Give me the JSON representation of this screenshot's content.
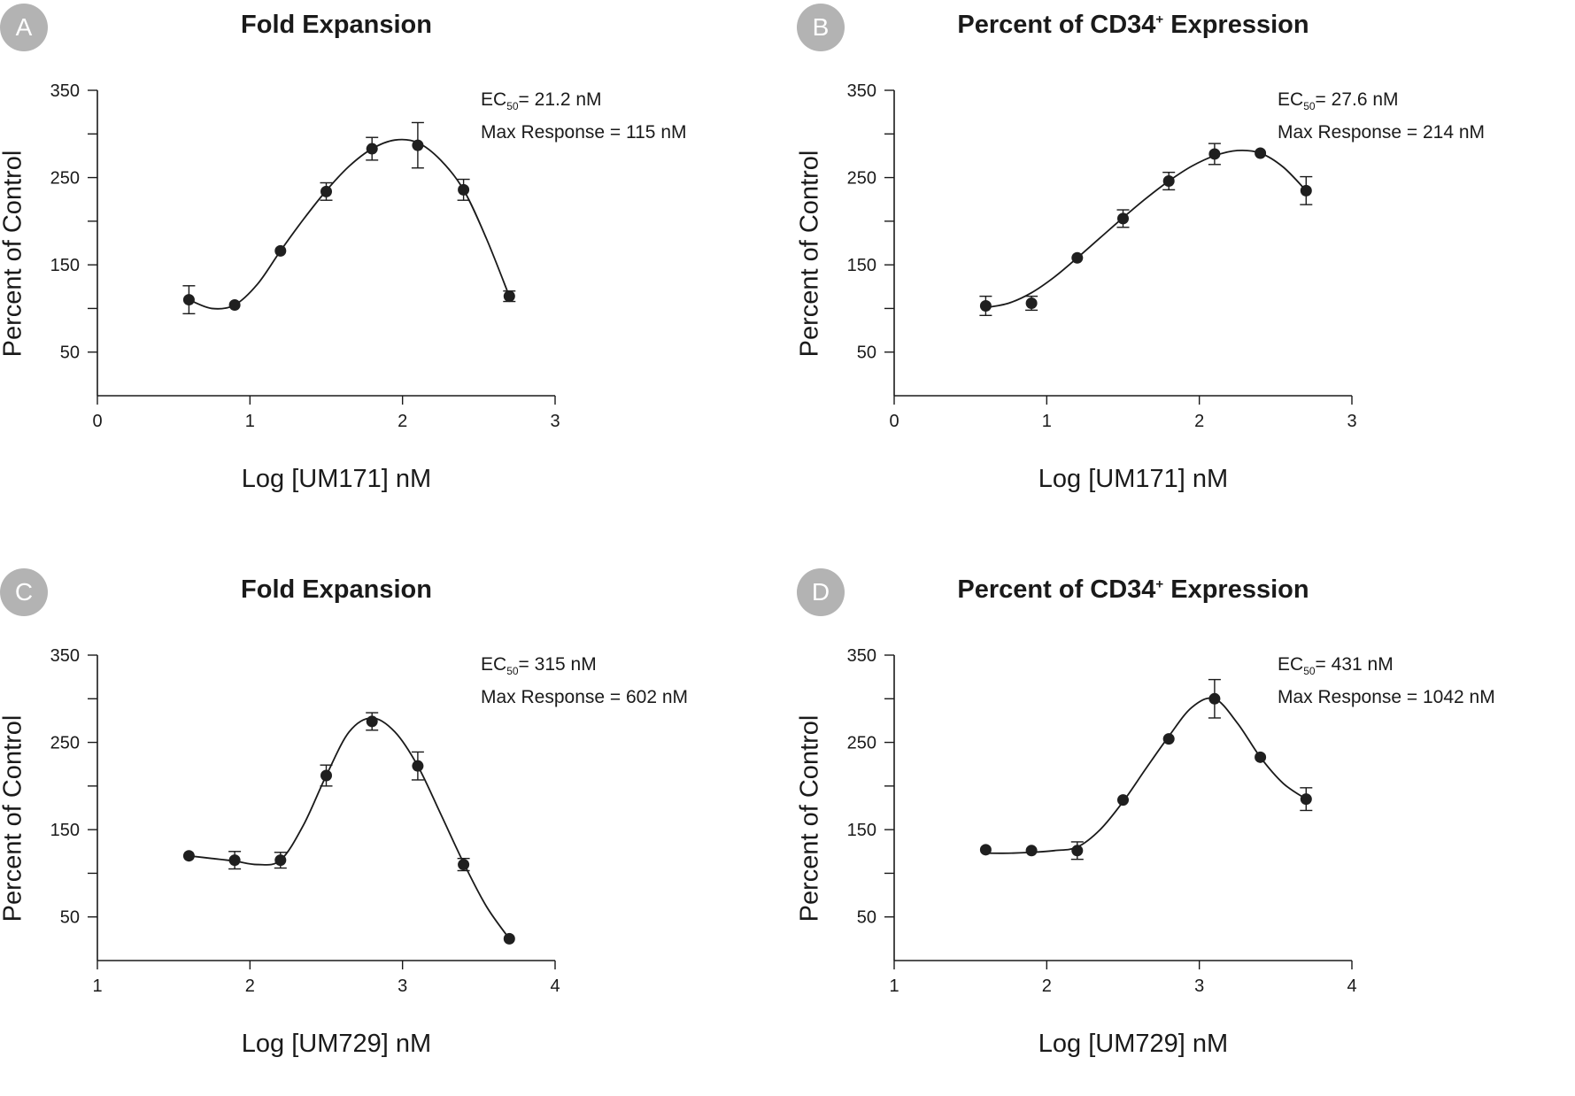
{
  "chart_data": [
    {
      "panel": "A",
      "type": "line",
      "title": "Fold Expansion",
      "title_sup": "",
      "xlabel": "Log [UM171] nM",
      "ylabel": "Percent of Control",
      "ec50_label": "EC",
      "ec50_sub": "50",
      "ec50_value": "= 21.2 nM",
      "max_response": "Max Response = 115 nM",
      "xlim": [
        0,
        3
      ],
      "ylim": [
        0,
        350
      ],
      "xticks": [
        "0",
        "1",
        "2",
        "3"
      ],
      "yticks": [
        "350",
        "250",
        "150",
        "50"
      ],
      "points": [
        {
          "x": 0.6,
          "y": 110,
          "err": 16
        },
        {
          "x": 0.9,
          "y": 104,
          "err": 0
        },
        {
          "x": 1.2,
          "y": 166,
          "err": 0
        },
        {
          "x": 1.5,
          "y": 234,
          "err": 10
        },
        {
          "x": 1.8,
          "y": 283,
          "err": 13
        },
        {
          "x": 2.1,
          "y": 287,
          "err": 26
        },
        {
          "x": 2.4,
          "y": 236,
          "err": 12
        },
        {
          "x": 2.7,
          "y": 114,
          "err": 6
        }
      ],
      "curve": [
        [
          0.6,
          110
        ],
        [
          0.75,
          100
        ],
        [
          0.9,
          104
        ],
        [
          1.05,
          128
        ],
        [
          1.2,
          166
        ],
        [
          1.35,
          202
        ],
        [
          1.5,
          235
        ],
        [
          1.65,
          263
        ],
        [
          1.8,
          283
        ],
        [
          1.95,
          293
        ],
        [
          2.1,
          290
        ],
        [
          2.25,
          270
        ],
        [
          2.4,
          236
        ],
        [
          2.55,
          180
        ],
        [
          2.7,
          114
        ]
      ]
    },
    {
      "panel": "B",
      "type": "line",
      "title": "Percent of CD34",
      "title_sup": "+",
      "title_suffix": " Expression",
      "xlabel": "Log [UM171] nM",
      "ylabel": "Percent of Control",
      "ec50_label": "EC",
      "ec50_sub": "50",
      "ec50_value": "= 27.6 nM",
      "max_response": "Max Response = 214 nM",
      "xlim": [
        0,
        3
      ],
      "ylim": [
        0,
        350
      ],
      "xticks": [
        "0",
        "1",
        "2",
        "3"
      ],
      "yticks": [
        "350",
        "250",
        "150",
        "50"
      ],
      "points": [
        {
          "x": 0.6,
          "y": 103,
          "err": 11
        },
        {
          "x": 0.9,
          "y": 106,
          "err": 8
        },
        {
          "x": 1.2,
          "y": 158,
          "err": 0
        },
        {
          "x": 1.5,
          "y": 203,
          "err": 10
        },
        {
          "x": 1.8,
          "y": 246,
          "err": 10
        },
        {
          "x": 2.1,
          "y": 277,
          "err": 12
        },
        {
          "x": 2.4,
          "y": 278,
          "err": 0
        },
        {
          "x": 2.7,
          "y": 235,
          "err": 16
        }
      ],
      "curve": [
        [
          0.6,
          101
        ],
        [
          0.75,
          106
        ],
        [
          0.9,
          118
        ],
        [
          1.05,
          136
        ],
        [
          1.2,
          158
        ],
        [
          1.35,
          181
        ],
        [
          1.5,
          204
        ],
        [
          1.65,
          226
        ],
        [
          1.8,
          246
        ],
        [
          1.95,
          263
        ],
        [
          2.1,
          275
        ],
        [
          2.25,
          281
        ],
        [
          2.4,
          278
        ],
        [
          2.55,
          262
        ],
        [
          2.7,
          235
        ]
      ]
    },
    {
      "panel": "C",
      "type": "line",
      "title": "Fold Expansion",
      "title_sup": "",
      "xlabel": "Log [UM729] nM",
      "ylabel": "Percent of Control",
      "ec50_label": "EC",
      "ec50_sub": "50",
      "ec50_value": "= 315 nM",
      "max_response": "Max Response = 602 nM",
      "xlim": [
        1,
        4
      ],
      "ylim": [
        0,
        350
      ],
      "xticks": [
        "1",
        "2",
        "3",
        "4"
      ],
      "yticks": [
        "350",
        "250",
        "150",
        "50"
      ],
      "points": [
        {
          "x": 1.6,
          "y": 120,
          "err": 0
        },
        {
          "x": 1.9,
          "y": 115,
          "err": 10
        },
        {
          "x": 2.2,
          "y": 115,
          "err": 9
        },
        {
          "x": 2.5,
          "y": 212,
          "err": 12
        },
        {
          "x": 2.8,
          "y": 274,
          "err": 10
        },
        {
          "x": 3.1,
          "y": 223,
          "err": 16
        },
        {
          "x": 3.4,
          "y": 110,
          "err": 7
        },
        {
          "x": 3.7,
          "y": 25,
          "err": 0
        }
      ],
      "curve": [
        [
          1.6,
          120
        ],
        [
          1.75,
          117
        ],
        [
          1.9,
          114
        ],
        [
          2.05,
          110
        ],
        [
          2.2,
          115
        ],
        [
          2.35,
          155
        ],
        [
          2.5,
          212
        ],
        [
          2.65,
          262
        ],
        [
          2.8,
          278
        ],
        [
          2.95,
          262
        ],
        [
          3.1,
          223
        ],
        [
          3.25,
          168
        ],
        [
          3.4,
          112
        ],
        [
          3.55,
          62
        ],
        [
          3.7,
          25
        ]
      ]
    },
    {
      "panel": "D",
      "type": "line",
      "title": "Percent of CD34",
      "title_sup": "+",
      "title_suffix": " Expression",
      "xlabel": "Log [UM729] nM",
      "ylabel": "Percent of Control",
      "ec50_label": "EC",
      "ec50_sub": "50",
      "ec50_value": "= 431 nM",
      "max_response": "Max Response = 1042 nM",
      "xlim": [
        1,
        4
      ],
      "ylim": [
        0,
        350
      ],
      "xticks": [
        "1",
        "2",
        "3",
        "4"
      ],
      "yticks": [
        "350",
        "250",
        "150",
        "50"
      ],
      "points": [
        {
          "x": 1.6,
          "y": 127,
          "err": 0
        },
        {
          "x": 1.9,
          "y": 126,
          "err": 0
        },
        {
          "x": 2.2,
          "y": 126,
          "err": 10
        },
        {
          "x": 2.5,
          "y": 184,
          "err": 0
        },
        {
          "x": 2.8,
          "y": 254,
          "err": 0
        },
        {
          "x": 3.1,
          "y": 300,
          "err": 22
        },
        {
          "x": 3.4,
          "y": 233,
          "err": 0
        },
        {
          "x": 3.7,
          "y": 185,
          "err": 13
        }
      ],
      "curve": [
        [
          1.6,
          123
        ],
        [
          1.75,
          123
        ],
        [
          1.9,
          124
        ],
        [
          2.05,
          126
        ],
        [
          2.2,
          130
        ],
        [
          2.35,
          150
        ],
        [
          2.5,
          182
        ],
        [
          2.65,
          220
        ],
        [
          2.8,
          257
        ],
        [
          2.95,
          290
        ],
        [
          3.1,
          300
        ],
        [
          3.25,
          272
        ],
        [
          3.4,
          233
        ],
        [
          3.55,
          203
        ],
        [
          3.7,
          185
        ]
      ]
    }
  ]
}
